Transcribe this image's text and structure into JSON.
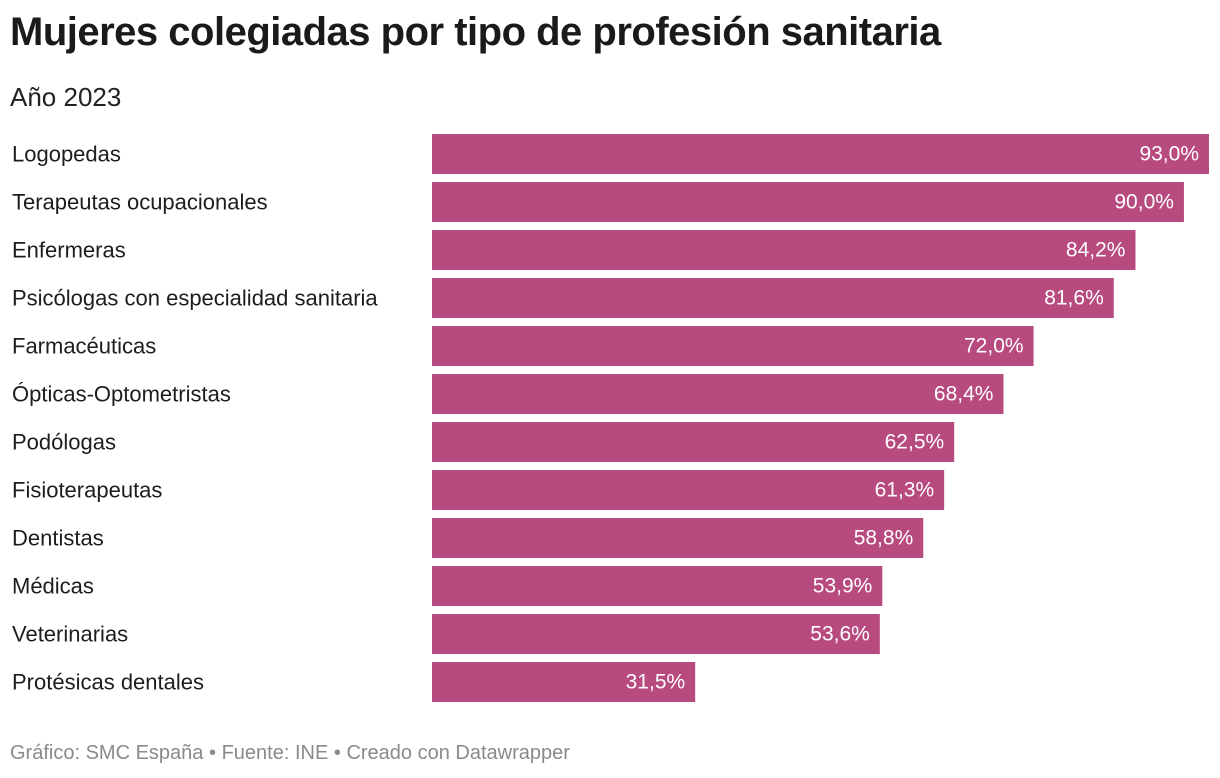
{
  "title": "Mujeres colegiadas por tipo de profesión sanitaria",
  "subtitle": "Año 2023",
  "footer": {
    "grafico_label": "Gráfico:",
    "grafico_value": "SMC España",
    "separator": "•",
    "fuente_label": "Fuente:",
    "fuente_value": "INE",
    "creado": "Creado con Datawrapper"
  },
  "colors": {
    "bar": "#b74a7e",
    "label_inside": "#ffffff",
    "category_text": "#1d1d1d"
  },
  "chart_data": {
    "type": "bar",
    "orientation": "horizontal",
    "title": "Mujeres colegiadas por tipo de profesión sanitaria",
    "subtitle": "Año 2023",
    "xlabel": "",
    "ylabel": "",
    "xlim": [
      0,
      93
    ],
    "grid": false,
    "legend": "none",
    "categories": [
      "Logopedas",
      "Terapeutas ocupacionales",
      "Enfermeras",
      "Psicólogas con especialidad sanitaria",
      "Farmacéuticas",
      "Ópticas-Optometristas",
      "Podólogas",
      "Fisioterapeutas",
      "Dentistas",
      "Médicas",
      "Veterinarias",
      "Protésicas dentales"
    ],
    "values": [
      93.0,
      90.0,
      84.2,
      81.6,
      72.0,
      68.4,
      62.5,
      61.3,
      58.8,
      53.9,
      53.6,
      31.5
    ],
    "value_labels": [
      "93,0%",
      "90,0%",
      "84,2%",
      "81,6%",
      "72,0%",
      "68,4%",
      "62,5%",
      "61,3%",
      "58,8%",
      "53,9%",
      "53,6%",
      "31,5%"
    ]
  }
}
